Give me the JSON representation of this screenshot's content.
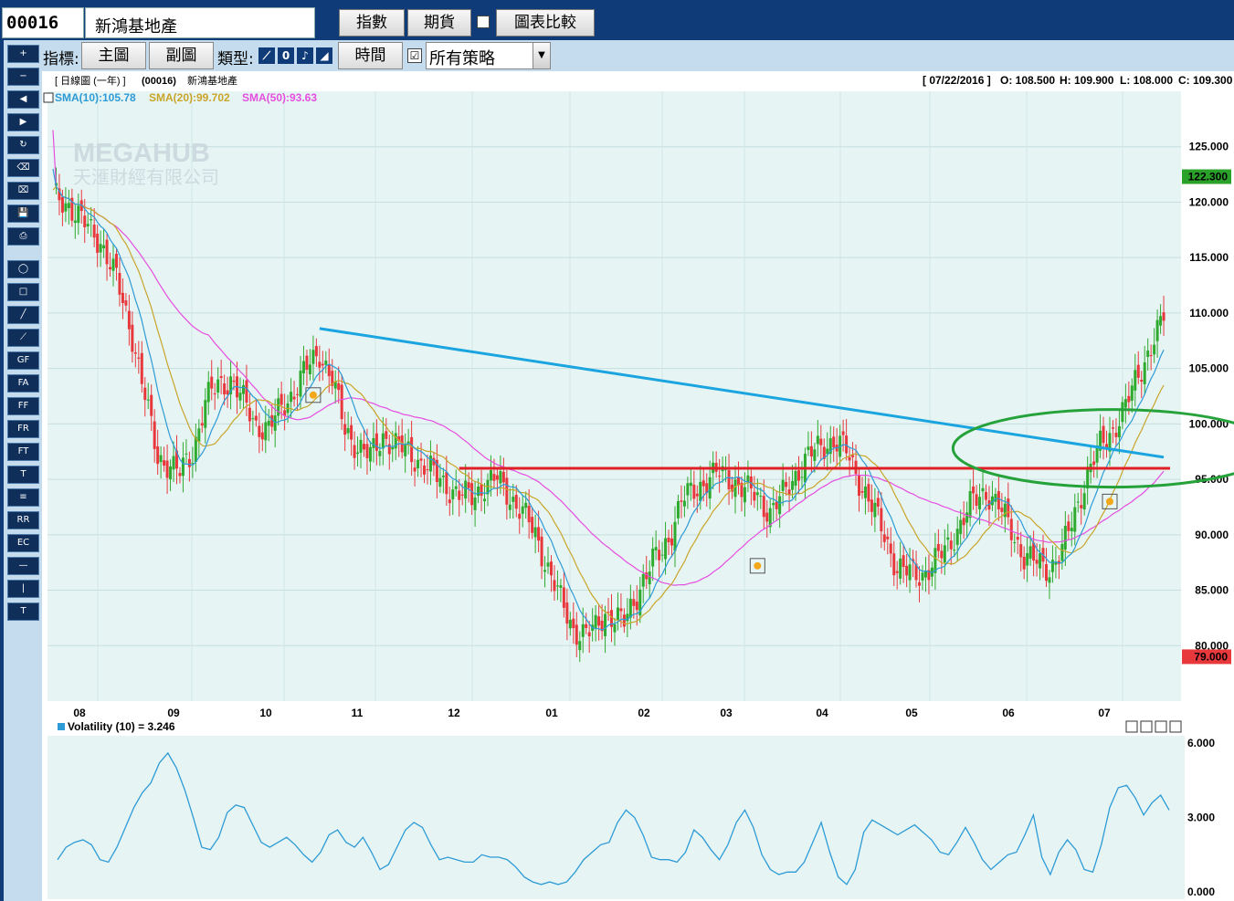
{
  "toolbar": {
    "stock_code": "00016",
    "stock_name": "新鴻基地產",
    "btn_index": "指數",
    "btn_futures": "期貨",
    "btn_compare": "圖表比較"
  },
  "subtoolbar": {
    "indicator_label": "指標:",
    "btn_main": "主圖",
    "btn_sub": "副圖",
    "type_label": "類型:",
    "btn_time": "時間",
    "strategy_checked": "☑",
    "strategy_value": "所有策略"
  },
  "tools": [
    {
      "name": "zoom-in-tool",
      "glyph": "+"
    },
    {
      "name": "zoom-out-tool",
      "glyph": "−"
    },
    {
      "name": "scroll-left-tool",
      "glyph": "◀"
    },
    {
      "name": "scroll-right-tool",
      "glyph": "▶"
    },
    {
      "name": "refresh-tool",
      "glyph": "↻"
    },
    {
      "name": "eraser-tool",
      "glyph": "⌫"
    },
    {
      "name": "clear-all-tool",
      "glyph": "⌧"
    },
    {
      "name": "save-tool",
      "glyph": "💾"
    },
    {
      "name": "print-tool",
      "glyph": "⎙"
    },
    {
      "name": "ellipse-tool",
      "glyph": "◯"
    },
    {
      "name": "rectangle-tool",
      "glyph": "□"
    },
    {
      "name": "line-tool",
      "glyph": "╱"
    },
    {
      "name": "fan-tool",
      "glyph": "⟋"
    },
    {
      "name": "gann-fan-tool",
      "glyph": "GF"
    },
    {
      "name": "fib-arc-tool",
      "glyph": "FA"
    },
    {
      "name": "fib-fan-tool",
      "glyph": "FF"
    },
    {
      "name": "fib-retracement-tool",
      "glyph": "FR"
    },
    {
      "name": "fib-time-tool",
      "glyph": "FT"
    },
    {
      "name": "text-level-tool",
      "glyph": "T"
    },
    {
      "name": "parallel-lines-tool",
      "glyph": "≡"
    },
    {
      "name": "regression-tool",
      "glyph": "RR"
    },
    {
      "name": "channel-tool",
      "glyph": "EC"
    },
    {
      "name": "horizontal-line-tool",
      "glyph": "—"
    },
    {
      "name": "vertical-line-tool",
      "glyph": "|"
    },
    {
      "name": "text-tool",
      "glyph": "T"
    }
  ],
  "chart_header": {
    "period": "[ 日線圖 (一年) ]",
    "code": "(00016)",
    "name": "新鴻基地產",
    "date": "[ 07/22/2016 ]",
    "open": "O: 108.500",
    "high": "H: 109.900",
    "low": "L: 108.000",
    "close": "C: 109.300",
    "sma10": "SMA(10):105.78",
    "sma20": "SMA(20):99.702",
    "sma50": "SMA(50):93.63",
    "watermark_en": "MEGAHUB",
    "watermark_cn": "天滙財經有限公司"
  },
  "volatility_header": {
    "label": "Volatility (10)  = 3.246"
  },
  "colors": {
    "topbar": "#0f3c78",
    "panel": "#c4dced",
    "chart_bg": "#e6f4f4",
    "up": "#2eaa2e",
    "down": "#e8383c",
    "sma10": "#2d9bd6",
    "sma20": "#c9a52a",
    "sma50": "#e64ee0",
    "trend_blue": "#1aa4e0",
    "support_red": "#e01f26",
    "circle_green": "#26a23a",
    "high_tag": "#2aa22a",
    "low_tag": "#e8383c"
  },
  "chart_data": [
    {
      "type": "candlestick",
      "title": "新鴻基地產 (00016) 日線圖 (一年)",
      "x_labels": [
        "08",
        "09",
        "10",
        "11",
        "12",
        "01",
        "02",
        "03",
        "04",
        "05",
        "06",
        "07"
      ],
      "y_ticks": [
        80.0,
        85.0,
        90.0,
        95.0,
        100.0,
        105.0,
        110.0,
        115.0,
        120.0,
        125.0
      ],
      "ylim": [
        75.0,
        130.0
      ],
      "highlight_tags": {
        "high": "122.300",
        "low": "79.000"
      },
      "series_points": "Approximate weekly closes (trading-day index 0..250)",
      "closes": [
        [
          0,
          120.5
        ],
        [
          5,
          119.8
        ],
        [
          10,
          118.0
        ],
        [
          15,
          116.5
        ],
        [
          20,
          113.0
        ],
        [
          25,
          108.0
        ],
        [
          30,
          101.0
        ],
        [
          33,
          97.0
        ],
        [
          36,
          96.5
        ],
        [
          40,
          95.5
        ],
        [
          44,
          97.5
        ],
        [
          48,
          102.0
        ],
        [
          52,
          103.5
        ],
        [
          56,
          104.0
        ],
        [
          60,
          102.0
        ],
        [
          64,
          100.0
        ],
        [
          68,
          99.5
        ],
        [
          72,
          101.5
        ],
        [
          76,
          103.0
        ],
        [
          80,
          105.0
        ],
        [
          84,
          106.5
        ],
        [
          88,
          104.0
        ],
        [
          92,
          99.5
        ],
        [
          96,
          98.0
        ],
        [
          100,
          97.0
        ],
        [
          104,
          99.0
        ],
        [
          108,
          98.0
        ],
        [
          112,
          97.5
        ],
        [
          116,
          96.5
        ],
        [
          120,
          95.5
        ],
        [
          124,
          94.5
        ],
        [
          128,
          93.5
        ],
        [
          132,
          93.5
        ],
        [
          136,
          94.5
        ],
        [
          140,
          95.0
        ],
        [
          144,
          93.5
        ],
        [
          148,
          92.0
        ],
        [
          152,
          90.0
        ],
        [
          156,
          87.0
        ],
        [
          160,
          84.0
        ],
        [
          164,
          81.5
        ],
        [
          168,
          81.0
        ],
        [
          171,
          81.5
        ],
        [
          174,
          83.0
        ],
        [
          177,
          82.5
        ],
        [
          180,
          82.0
        ],
        [
          183,
          84.0
        ],
        [
          186,
          86.0
        ],
        [
          189,
          87.5
        ],
        [
          192,
          88.5
        ],
        [
          195,
          90.5
        ],
        [
          198,
          93.0
        ],
        [
          202,
          94.0
        ],
        [
          206,
          95.0
        ],
        [
          210,
          95.5
        ],
        [
          214,
          95.0
        ],
        [
          218,
          94.0
        ],
        [
          222,
          93.5
        ],
        [
          226,
          92.0
        ],
        [
          230,
          93.5
        ],
        [
          234,
          95.5
        ],
        [
          238,
          97.0
        ],
        [
          242,
          98.0
        ],
        [
          246,
          98.5
        ],
        [
          250,
          97.5
        ],
        [
          254,
          95.0
        ],
        [
          258,
          92.5
        ],
        [
          262,
          90.0
        ],
        [
          266,
          87.0
        ],
        [
          270,
          86.5
        ],
        [
          274,
          86.5
        ],
        [
          278,
          87.5
        ],
        [
          282,
          89.0
        ],
        [
          286,
          91.0
        ],
        [
          290,
          93.0
        ],
        [
          294,
          94.0
        ],
        [
          298,
          92.5
        ],
        [
          302,
          90.5
        ],
        [
          306,
          88.0
        ],
        [
          310,
          87.5
        ],
        [
          314,
          87.0
        ],
        [
          318,
          88.5
        ],
        [
          322,
          92.0
        ],
        [
          326,
          95.5
        ],
        [
          330,
          98.0
        ],
        [
          334,
          99.5
        ],
        [
          338,
          101.5
        ],
        [
          342,
          104.5
        ],
        [
          346,
          107.0
        ],
        [
          350,
          109.3
        ]
      ],
      "sma10_label": "SMA(10)",
      "sma20_label": "SMA(20)",
      "sma50_label": "SMA(50)",
      "annotations": [
        {
          "kind": "trendline",
          "color": "#1aa4e0",
          "from": [
            84,
            108.6
          ],
          "to": [
            350,
            97.0
          ]
        },
        {
          "kind": "horizontal",
          "color": "#e01f26",
          "y": 96.0,
          "from": 128,
          "to": 352
        },
        {
          "kind": "ellipse",
          "color": "#26a23a",
          "center": [
            334,
            97.8
          ],
          "rx": 14,
          "ry": 3.5
        }
      ]
    },
    {
      "type": "line",
      "series": [
        {
          "name": "Volatility (10)",
          "values": [
            1.3,
            1.8,
            2.0,
            2.1,
            1.9,
            1.3,
            1.2,
            1.8,
            2.6,
            3.4,
            4.0,
            4.4,
            5.2,
            5.6,
            5.0,
            4.1,
            3.0,
            1.8,
            1.7,
            2.2,
            3.2,
            3.5,
            3.4,
            2.7,
            2.0,
            1.8,
            2.0,
            2.2,
            1.9,
            1.5,
            1.2,
            1.6,
            2.3,
            2.5,
            2.0,
            1.8,
            2.2,
            1.6,
            0.9,
            1.1,
            1.8,
            2.5,
            2.8,
            2.6,
            1.9,
            1.3,
            1.4,
            1.3,
            1.2,
            1.2,
            1.5,
            1.4,
            1.4,
            1.3,
            1.0,
            0.6,
            0.4,
            0.3,
            0.4,
            0.3,
            0.4,
            0.8,
            1.3,
            1.6,
            1.9,
            2.0,
            2.8,
            3.3,
            3.0,
            2.3,
            1.4,
            1.3,
            1.3,
            1.2,
            1.6,
            2.5,
            2.2,
            1.7,
            1.3,
            1.9,
            2.8,
            3.3,
            2.6,
            1.5,
            0.9,
            0.7,
            0.8,
            0.8,
            1.2,
            2.0,
            2.8,
            1.6,
            0.6,
            0.3,
            0.9,
            2.4,
            2.9,
            2.7,
            2.5,
            2.3,
            2.5,
            2.7,
            2.4,
            2.1,
            1.6,
            1.5,
            2.0,
            2.6,
            2.0,
            1.3,
            0.9,
            1.2,
            1.5,
            1.6,
            2.3,
            3.1,
            1.4,
            0.7,
            1.6,
            2.1,
            1.7,
            0.9,
            0.8,
            1.9,
            3.4,
            4.2,
            4.3,
            3.8,
            3.1,
            3.6,
            3.9,
            3.3
          ]
        }
      ],
      "title": "Volatility (10)",
      "ylim": [
        0.0,
        6.0
      ],
      "y_ticks": [
        0.0,
        3.0,
        6.0
      ]
    }
  ]
}
